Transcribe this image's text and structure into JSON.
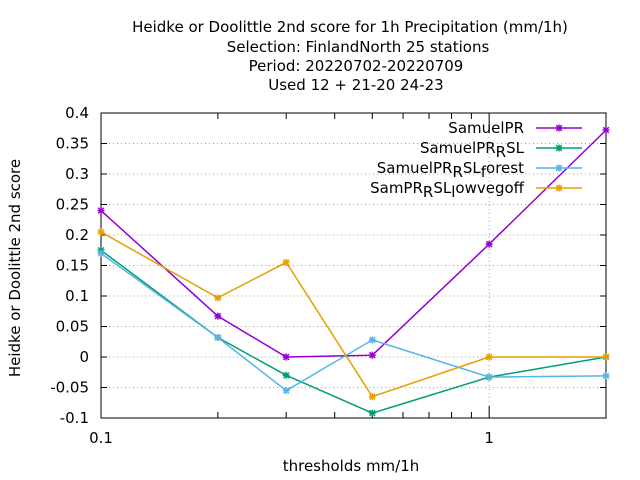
{
  "chart_data": {
    "type": "line",
    "title_lines": [
      "Heidke or Doolittle 2nd score  for 1h Precipitation (mm/1h)",
      "Selection: FinlandNorth     25 stations",
      "Period: 20220702-20220709",
      "Used  12 + 21-20 24-23"
    ],
    "xlabel": "thresholds mm/1h",
    "ylabel": "Heidke or Doolittle 2nd score",
    "x_scale": "log",
    "xlim": [
      0.1,
      2
    ],
    "ylim": [
      -0.1,
      0.4
    ],
    "x_tick_labels": [
      {
        "value": 0.1,
        "label": "0.1"
      },
      {
        "value": 1,
        "label": "1"
      }
    ],
    "y_ticks": [
      {
        "value": 0.4,
        "label": "0.4"
      },
      {
        "value": 0.35,
        "label": "0.35"
      },
      {
        "value": 0.3,
        "label": "0.3"
      },
      {
        "value": 0.25,
        "label": "0.25"
      },
      {
        "value": 0.2,
        "label": "0.2"
      },
      {
        "value": 0.15,
        "label": "0.15"
      },
      {
        "value": 0.1,
        "label": "0.1"
      },
      {
        "value": 0.05,
        "label": "0.05"
      },
      {
        "value": 0,
        "label": "0"
      },
      {
        "value": -0.05,
        "label": "-0.05"
      },
      {
        "value": -0.1,
        "label": "-0.1"
      }
    ],
    "grid": true,
    "legend_position": "top-right",
    "x": [
      0.1,
      0.2,
      0.3,
      0.5,
      1,
      2
    ],
    "series": [
      {
        "name": "SamuelPR",
        "legend": {
          "base": "SamuelPR",
          "sub": "",
          "tail": ""
        },
        "color": "#9400d3",
        "marker": "plus-star",
        "values": [
          0.24,
          0.067,
          0.0,
          0.003,
          0.185,
          0.372
        ]
      },
      {
        "name": "SamuelPR_RSL",
        "legend": {
          "base": "SamuelPR",
          "sub": "R",
          "tail": "SL"
        },
        "color": "#009e73",
        "marker": "plus-star",
        "values": [
          0.175,
          0.032,
          -0.03,
          -0.092,
          -0.033,
          0.0
        ]
      },
      {
        "name": "SamuelPR_RSL_forest",
        "legend": {
          "base": "SamuelPR",
          "sub": "R",
          "tail": "SL",
          "sub2": "f",
          "tail2": "orest"
        },
        "color": "#56b4e9",
        "marker": "plus-star",
        "values": [
          0.17,
          0.032,
          -0.055,
          0.028,
          -0.033,
          -0.031
        ]
      },
      {
        "name": "SamPR_RSL_lowvegoff",
        "legend": {
          "base": "SamPR",
          "sub": "R",
          "tail": "SL",
          "sub2": "l",
          "tail2": "owvegoff"
        },
        "color": "#e69f00",
        "marker": "plus-star",
        "values": [
          0.205,
          0.097,
          0.155,
          -0.065,
          0.0,
          0.0
        ]
      }
    ]
  }
}
